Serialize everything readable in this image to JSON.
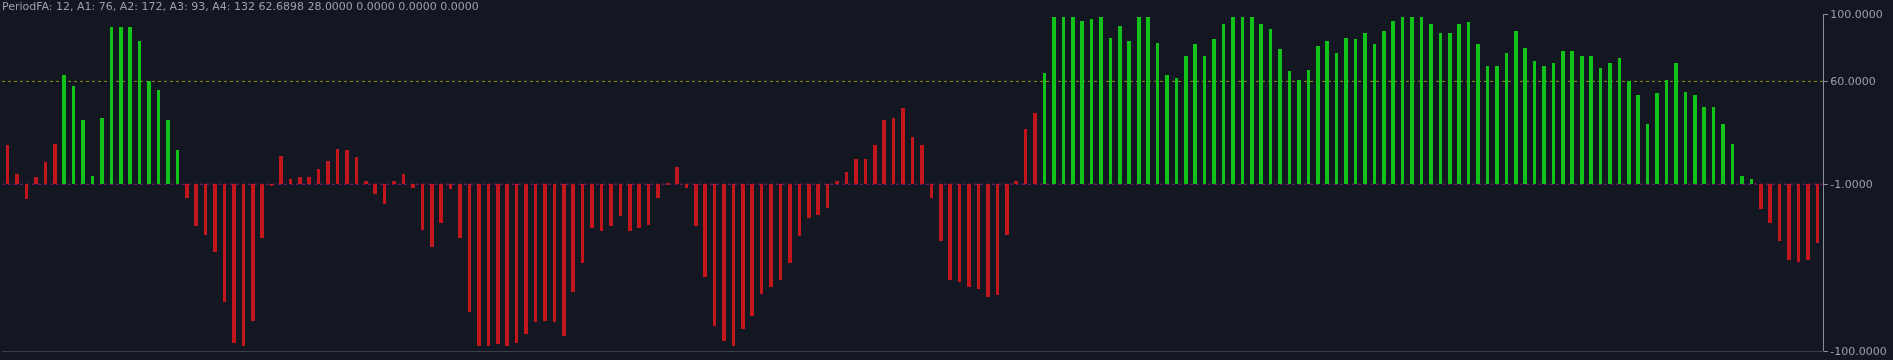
{
  "chart_data": {
    "type": "bar",
    "title": "PeriodFA: 12, A1: 76, A2: 172, A3: 93, A4: 132 62.6898 28.0000 0.0000 0.0000 0.0000",
    "categories": [
      null,
      null,
      null,
      null,
      null,
      null,
      null,
      null,
      null,
      null,
      null,
      null,
      null,
      null,
      null,
      null,
      null,
      null,
      null,
      null,
      null,
      null,
      null,
      null,
      null,
      null,
      null,
      null,
      null,
      null,
      null,
      null,
      null,
      null,
      null,
      null,
      null,
      null,
      null,
      null,
      null,
      null,
      null,
      null,
      null,
      null,
      null,
      null,
      null,
      null,
      null,
      null,
      null,
      null,
      null,
      null,
      null,
      null,
      null,
      null,
      null,
      null,
      null,
      null,
      null,
      null,
      null,
      null,
      null,
      null,
      null,
      null,
      null,
      null,
      null,
      null,
      null,
      null,
      null,
      null,
      null,
      null,
      null,
      null,
      null,
      null,
      null,
      null,
      null,
      null,
      null,
      null,
      null,
      null,
      null,
      null,
      null,
      null,
      null,
      null,
      null,
      null,
      null,
      null,
      null,
      null,
      null,
      null,
      null,
      null,
      null,
      null,
      null,
      null,
      null,
      null,
      null,
      null,
      null,
      null,
      null,
      null,
      null,
      null,
      null,
      null,
      null,
      null,
      null,
      null,
      null,
      null,
      null,
      null,
      null,
      null,
      null,
      null,
      null,
      null,
      null,
      null,
      null,
      null,
      null,
      null,
      null,
      null,
      null,
      null,
      null,
      null,
      null,
      null,
      null,
      null,
      null,
      null,
      null,
      null,
      null,
      null,
      null,
      null,
      null,
      null,
      null,
      null,
      null,
      null,
      null,
      null,
      null,
      null,
      null,
      null,
      null,
      null,
      null,
      null,
      null,
      null,
      null,
      null,
      null,
      null,
      null,
      null,
      null,
      null,
      null,
      null,
      null
    ],
    "values": [
      23,
      6,
      -9,
      4,
      13,
      24,
      65,
      58,
      38,
      5,
      39,
      93,
      93,
      93,
      85,
      61,
      56,
      38,
      20,
      -8,
      -25,
      -30,
      -40,
      -70,
      -94,
      -96,
      -81,
      -32,
      -1,
      17,
      3,
      4,
      4,
      9,
      14,
      21,
      20,
      16,
      2,
      -6,
      -12,
      2,
      6,
      -2,
      -27,
      -37,
      -23,
      -3,
      -32,
      -76,
      -96,
      -96,
      -95,
      -96,
      -94,
      -89,
      -82,
      -81,
      -82,
      -90,
      -64,
      -47,
      -26,
      -28,
      -25,
      -19,
      -28,
      -26,
      -24,
      -8,
      0.3,
      10,
      -2,
      -25,
      -55,
      -84,
      -93,
      -96,
      -86,
      -78,
      -65,
      -61,
      -57,
      -47,
      -31,
      -20,
      -18,
      -14,
      2,
      7,
      15,
      15,
      23,
      38,
      39,
      45,
      28,
      23,
      -8,
      -34,
      -57,
      -58,
      -61,
      -62,
      -67,
      -66,
      -30,
      2,
      33,
      42,
      66,
      99,
      99,
      99,
      97,
      98,
      99,
      87,
      94,
      85,
      99,
      99,
      84,
      65,
      63,
      76,
      83,
      76,
      86,
      95,
      99,
      99,
      99,
      95,
      92,
      80,
      67,
      62,
      68,
      82,
      85,
      78,
      87,
      86,
      90,
      83,
      91,
      97,
      99,
      99,
      99,
      95,
      90,
      90,
      95,
      96,
      83,
      70,
      70,
      78,
      91,
      81,
      73,
      70,
      72,
      79,
      79,
      76,
      76,
      69,
      72,
      75,
      61,
      53,
      36,
      54,
      62,
      72,
      55,
      53,
      46,
      46,
      36,
      24,
      5,
      3,
      -15,
      -23,
      -34,
      -45,
      -46,
      -45,
      -35
    ],
    "base": [
      -1,
      -1,
      -1,
      -1,
      -1,
      -1,
      -1,
      -1,
      -1,
      -1,
      -1,
      -1,
      -1,
      -1,
      -1,
      -1,
      -1,
      -1,
      -1,
      -1,
      -1,
      -1,
      -1,
      -1,
      -1,
      -1,
      -1,
      -1,
      -1,
      -1,
      -1,
      -1,
      -1,
      -1,
      -1,
      -1,
      -1,
      -1,
      -1,
      -1,
      -1,
      -1,
      -1,
      -1,
      -1,
      -1,
      -1,
      -1,
      -1,
      -1,
      -1,
      -1,
      -1,
      -1,
      -1,
      -1,
      -1,
      -1,
      -1,
      -1,
      -1,
      -1,
      -1,
      -1,
      -1,
      -1,
      -1,
      -1,
      -1,
      -1,
      -1,
      -1,
      -1,
      -1,
      -1,
      -1,
      -1,
      -1,
      -1,
      -1,
      -1,
      -1,
      -1,
      -1,
      -1,
      -1,
      -1,
      -1,
      -1,
      -1,
      -1,
      -1,
      -1,
      -1,
      -1,
      -1,
      -1,
      -1,
      -1,
      -1,
      -1,
      -1,
      -1,
      -1,
      -1,
      -1,
      -1,
      -1,
      -1,
      -1,
      -1,
      -1,
      -1,
      -1,
      -1,
      -1,
      -1,
      -1,
      -1,
      -1,
      -1,
      -1,
      -1,
      -1,
      -1,
      -1,
      -1,
      -1,
      -1,
      -1,
      -1,
      -1,
      -1,
      -1,
      -1,
      -1,
      -1,
      -1,
      -1,
      -1,
      -1,
      -1,
      -1,
      -1,
      -1,
      -1,
      -1,
      -1,
      -1,
      -1,
      -1,
      -1,
      -1,
      -1,
      -1,
      -1,
      -1,
      -1,
      -1,
      -1,
      -1,
      -1,
      -1,
      -1,
      -1,
      -1,
      -1,
      -1,
      -1,
      -1,
      -1,
      -1,
      -1,
      -1,
      -1,
      -1,
      -1,
      -1,
      -1,
      -1,
      -1,
      -1,
      -1,
      -1,
      -1,
      -1,
      -1,
      -1,
      -1,
      -1,
      -1,
      -1,
      -1
    ],
    "colors": [
      "#c0161c",
      "#c0161c",
      "#c0161c",
      "#c0161c",
      "#c0161c",
      "#c0161c",
      "#12c21a",
      "#12c21a",
      "#12c21a",
      "#12c21a",
      "#12c21a",
      "#12c21a",
      "#12c21a",
      "#12c21a",
      "#12c21a",
      "#12c21a",
      "#12c21a",
      "#12c21a",
      "#12c21a",
      "#c0161c",
      "#c0161c",
      "#c0161c",
      "#c0161c",
      "#c0161c",
      "#c0161c",
      "#c0161c",
      "#c0161c",
      "#c0161c",
      "#c0161c",
      "#c0161c",
      "#c0161c",
      "#c0161c",
      "#c0161c",
      "#c0161c",
      "#c0161c",
      "#c0161c",
      "#c0161c",
      "#c0161c",
      "#c0161c",
      "#c0161c",
      "#c0161c",
      "#c0161c",
      "#c0161c",
      "#c0161c",
      "#c0161c",
      "#c0161c",
      "#c0161c",
      "#c0161c",
      "#c0161c",
      "#c0161c",
      "#c0161c",
      "#c0161c",
      "#c0161c",
      "#c0161c",
      "#c0161c",
      "#c0161c",
      "#c0161c",
      "#c0161c",
      "#c0161c",
      "#c0161c",
      "#c0161c",
      "#c0161c",
      "#c0161c",
      "#c0161c",
      "#c0161c",
      "#c0161c",
      "#c0161c",
      "#c0161c",
      "#c0161c",
      "#c0161c",
      "#c0161c",
      "#c0161c",
      "#c0161c",
      "#c0161c",
      "#c0161c",
      "#c0161c",
      "#c0161c",
      "#c0161c",
      "#c0161c",
      "#c0161c",
      "#c0161c",
      "#c0161c",
      "#c0161c",
      "#c0161c",
      "#c0161c",
      "#c0161c",
      "#c0161c",
      "#c0161c",
      "#c0161c",
      "#c0161c",
      "#c0161c",
      "#c0161c",
      "#c0161c",
      "#c0161c",
      "#c0161c",
      "#c0161c",
      "#c0161c",
      "#c0161c",
      "#c0161c",
      "#c0161c",
      "#c0161c",
      "#c0161c",
      "#c0161c",
      "#c0161c",
      "#c0161c",
      "#c0161c",
      "#c0161c",
      "#c0161c",
      "#c0161c",
      "#c0161c",
      "#12c21a",
      "#12c21a",
      "#12c21a",
      "#12c21a",
      "#12c21a",
      "#12c21a",
      "#12c21a",
      "#12c21a",
      "#12c21a",
      "#12c21a",
      "#12c21a",
      "#12c21a",
      "#12c21a",
      "#12c21a",
      "#12c21a",
      "#12c21a",
      "#12c21a",
      "#12c21a",
      "#12c21a",
      "#12c21a",
      "#12c21a",
      "#12c21a",
      "#12c21a",
      "#12c21a",
      "#12c21a",
      "#12c21a",
      "#12c21a",
      "#12c21a",
      "#12c21a",
      "#12c21a",
      "#12c21a",
      "#12c21a",
      "#12c21a",
      "#12c21a",
      "#12c21a",
      "#12c21a",
      "#12c21a",
      "#12c21a",
      "#12c21a",
      "#12c21a",
      "#12c21a",
      "#12c21a",
      "#12c21a",
      "#12c21a",
      "#12c21a",
      "#12c21a",
      "#12c21a",
      "#12c21a",
      "#12c21a",
      "#12c21a",
      "#12c21a",
      "#12c21a",
      "#12c21a",
      "#12c21a",
      "#12c21a",
      "#12c21a",
      "#12c21a",
      "#12c21a",
      "#12c21a",
      "#12c21a",
      "#12c21a",
      "#12c21a",
      "#12c21a",
      "#12c21a",
      "#12c21a",
      "#12c21a",
      "#12c21a",
      "#12c21a",
      "#12c21a",
      "#12c21a",
      "#12c21a",
      "#12c21a",
      "#12c21a",
      "#12c21a",
      "#12c21a",
      "#12c21a",
      "#c0161c",
      "#c0161c",
      "#c0161c",
      "#c0161c",
      "#c0161c",
      "#c0161c",
      "#c0161c"
    ],
    "ylim": [
      -100,
      100
    ],
    "yticks": [
      {
        "value": 100,
        "label": "100.0000"
      },
      {
        "value": 60,
        "label": "60.0000"
      },
      {
        "value": -1,
        "label": "-1.0000"
      },
      {
        "value": -100,
        "label": "-100.0000"
      }
    ],
    "ref_lines": [
      {
        "axis": "y",
        "value": 60,
        "color": "#8f8f10",
        "line_style": "dotted"
      },
      {
        "axis": "y",
        "value": -1,
        "color": "#8b1e8b",
        "line_style": "dotted"
      }
    ],
    "tick_labels": "y",
    "grid": false,
    "legend": false
  }
}
